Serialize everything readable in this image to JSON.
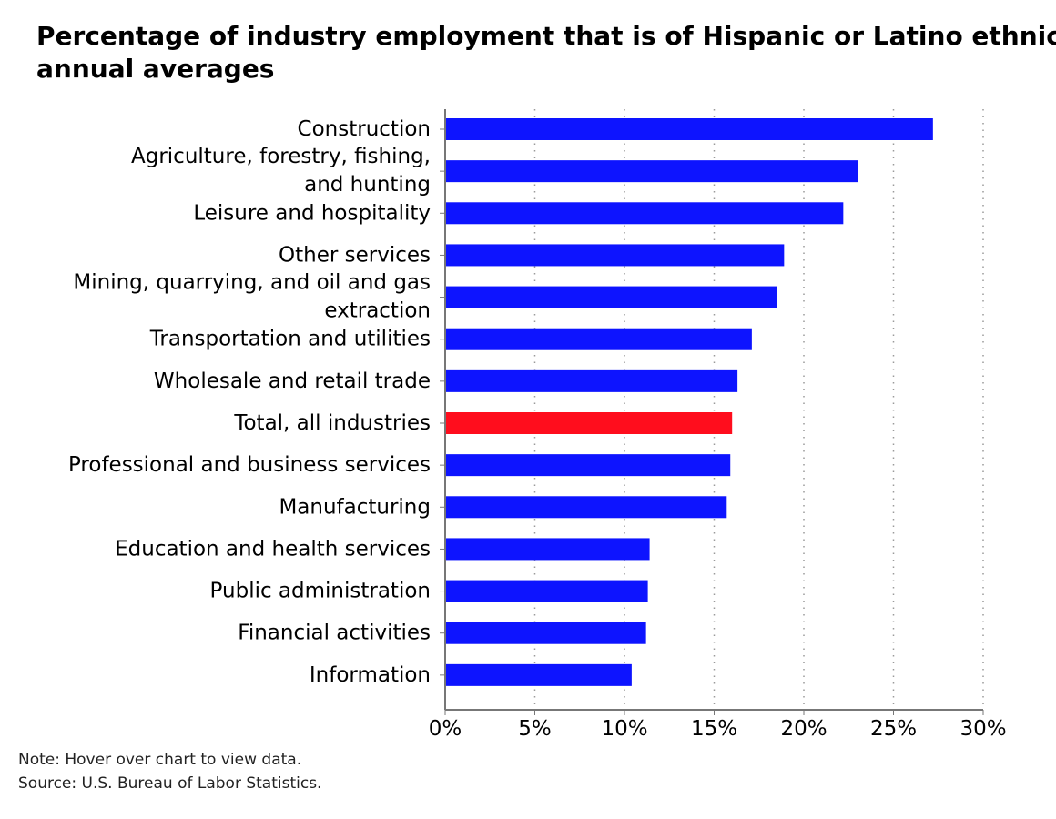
{
  "title_lines": [
    "Percentage of industry employment that is of Hispanic or Latino ethnicity",
    "annual averages"
  ],
  "notes": {
    "note": "Note: Hover over chart to view data.",
    "source": "Source: U.S. Bureau of Labor Statistics."
  },
  "chart_data": {
    "type": "bar",
    "orientation": "horizontal",
    "categories": [
      "Construction",
      "Agriculture, forestry, fishing, and hunting",
      "Leisure and hospitality",
      "Other services",
      "Mining, quarrying, and oil and gas extraction",
      "Transportation and utilities",
      "Wholesale and retail trade",
      "Total, all industries",
      "Professional and business services",
      "Manufacturing",
      "Education and health services",
      "Public administration",
      "Financial activities",
      "Information"
    ],
    "values": [
      27.2,
      23.0,
      22.2,
      18.9,
      18.5,
      17.1,
      16.3,
      16.0,
      15.9,
      15.7,
      11.4,
      11.3,
      11.2,
      10.4
    ],
    "highlight": "Total, all industries",
    "colors": {
      "bar": "#0d14ff",
      "highlight": "#ff0d1d"
    },
    "xlim": [
      0,
      30
    ],
    "xticks": [
      "0%",
      "5%",
      "10%",
      "15%",
      "20%",
      "25%",
      "30%"
    ],
    "grid": "vertical dotted",
    "xlabel": "",
    "ylabel": ""
  }
}
